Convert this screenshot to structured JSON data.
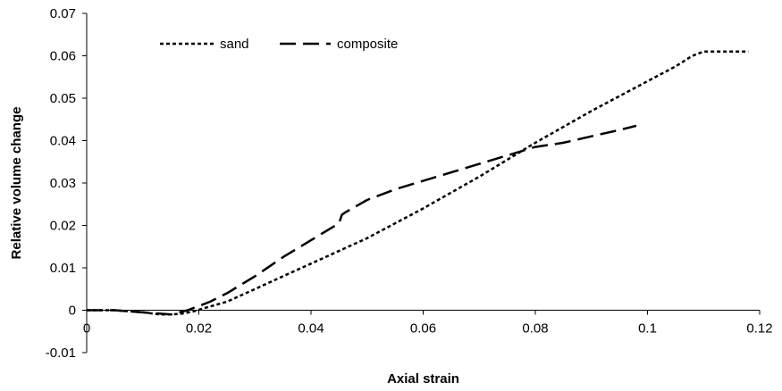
{
  "chart_data": {
    "type": "line",
    "title": "",
    "xlabel": "Axial strain",
    "ylabel": "Relative volume change",
    "xlim": [
      0,
      0.12
    ],
    "ylim": [
      -0.01,
      0.07
    ],
    "x_ticks": [
      0,
      0.02,
      0.04,
      0.06,
      0.08,
      0.1,
      0.12
    ],
    "x_tick_labels": [
      "0",
      "0.02",
      "0.04",
      "0.06",
      "0.08",
      "0.1",
      "0.12"
    ],
    "y_ticks": [
      -0.01,
      0,
      0.01,
      0.02,
      0.03,
      0.04,
      0.05,
      0.06,
      0.07
    ],
    "y_tick_labels": [
      "-0.01",
      "0",
      "0.01",
      "0.02",
      "0.03",
      "0.04",
      "0.05",
      "0.06",
      "0.07"
    ],
    "grid": false,
    "legend_position": "top-left",
    "series": [
      {
        "name": "sand",
        "style": "short-dash",
        "color": "#000000",
        "x": [
          0,
          0.005,
          0.01,
          0.013,
          0.015,
          0.017,
          0.019,
          0.021,
          0.025,
          0.03,
          0.035,
          0.04,
          0.05,
          0.06,
          0.07,
          0.08,
          0.09,
          0.1,
          0.105,
          0.108,
          0.11,
          0.115,
          0.118
        ],
        "y": [
          0,
          0,
          -0.0005,
          -0.001,
          -0.001,
          -0.0008,
          -0.0003,
          0.0005,
          0.002,
          0.005,
          0.008,
          0.011,
          0.017,
          0.024,
          0.0315,
          0.0395,
          0.047,
          0.054,
          0.0575,
          0.06,
          0.061,
          0.061,
          0.061
        ]
      },
      {
        "name": "composite",
        "style": "long-dash",
        "color": "#000000",
        "x": [
          0,
          0.005,
          0.01,
          0.015,
          0.018,
          0.02,
          0.022,
          0.025,
          0.03,
          0.035,
          0.04,
          0.045,
          0.0455,
          0.046,
          0.05,
          0.055,
          0.06,
          0.065,
          0.07,
          0.075,
          0.08,
          0.085,
          0.09,
          0.095,
          0.098
        ],
        "y": [
          0,
          0,
          -0.0005,
          -0.001,
          0,
          0.001,
          0.002,
          0.004,
          0.008,
          0.0125,
          0.0165,
          0.0205,
          0.0225,
          0.023,
          0.026,
          0.0285,
          0.0305,
          0.0325,
          0.0345,
          0.0365,
          0.0385,
          0.0395,
          0.041,
          0.0425,
          0.0435
        ]
      }
    ]
  }
}
